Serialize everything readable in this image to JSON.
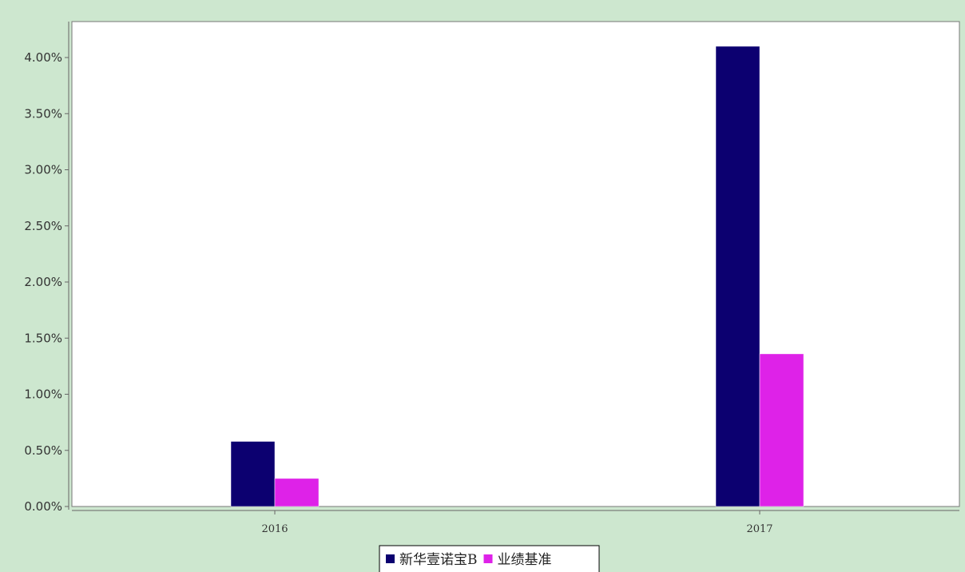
{
  "chart_data": {
    "type": "bar",
    "categories": [
      "2016",
      "2017"
    ],
    "series": [
      {
        "name": "新华壹诺宝B",
        "values": [
          0.58,
          4.1
        ],
        "color": "#0c0070"
      },
      {
        "name": "业绩基准",
        "values": [
          0.25,
          1.36
        ],
        "color": "#de22e8"
      }
    ],
    "ylim": [
      0,
      4.3
    ],
    "yticks": [
      0,
      0.5,
      1.0,
      1.5,
      2.0,
      2.5,
      3.0,
      3.5,
      4.0
    ],
    "y_tick_labels": [
      "0.00%",
      "0.50%",
      "1.00%",
      "1.50%",
      "2.00%",
      "2.50%",
      "3.00%",
      "3.50%",
      "4.00%"
    ],
    "y_unit": "%",
    "grid": false,
    "legend_position": "bottom-center",
    "background_color": "#cde7cf",
    "plot_background_color": "#ffffff"
  }
}
